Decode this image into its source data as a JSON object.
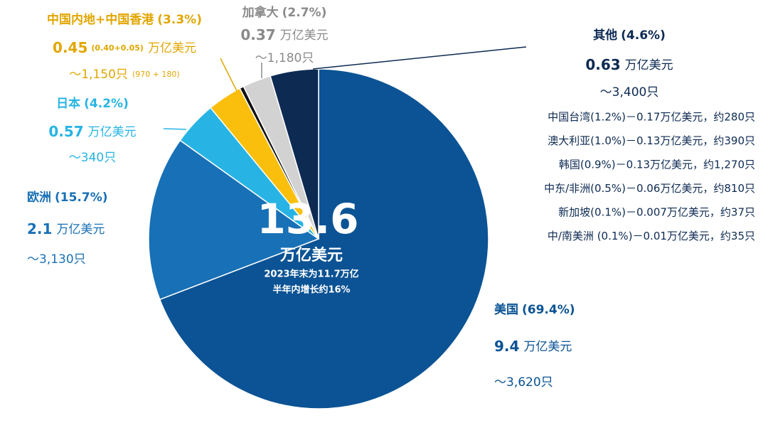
{
  "chart_data": {
    "type": "pie",
    "categories": [
      "美国",
      "欧洲",
      "日本",
      "中国内地+中国香港",
      null,
      "加拿大",
      "其他"
    ],
    "values": [
      69.4,
      15.7,
      4.2,
      3.3,
      0.4,
      2.7,
      4.6
    ],
    "value_labels": [
      "(69.4%)",
      "(15.7%)",
      "(4.2%)",
      "(3.3%)",
      null,
      "(2.7%)",
      "(4.6%)"
    ],
    "colors": [
      "#0b5394",
      "#1870b6",
      "#27b4e4",
      "#f9bf0c",
      "#111111",
      "#d2d2d2",
      "#0d2a52"
    ],
    "label_colors": [
      "#0b5394",
      "#1870b6",
      "#27b4e4",
      "#e2a600",
      null,
      "#8a8a8a",
      "#0d2a52"
    ],
    "amounts": [
      9.4,
      2.1,
      0.57,
      0.45,
      null,
      0.37,
      0.63
    ],
    "amount_breakdowns": [
      null,
      null,
      null,
      "(0.40+0.05)",
      null,
      null,
      null
    ],
    "amount_unit": "万亿美元",
    "counts": [
      "～3,620只",
      "～3,130只",
      "～340只",
      "～1,150只",
      null,
      "～1,180只",
      "～3,400只"
    ],
    "count_breakdowns": [
      null,
      null,
      null,
      "(970 + 180)",
      null,
      null,
      null
    ],
    "other_breakdown": [
      "中国台湾(1.2%)－0.17万亿美元，约280只",
      "澳大利亚(1.0%)－0.13万亿美元，约390只",
      "韩国(0.9%)－0.13万亿美元，约1,270只",
      "中东/非洲(0.5%)－0.06万亿美元，约810只",
      "新加坡(0.1%)－0.007万亿美元，约37只",
      "中/南美洲 (0.1%)－0.01万亿美元，约35只"
    ],
    "center_total": 13.6,
    "center_unit": "万亿美元",
    "center_notes": [
      "2023年末为11.7万亿",
      "半年内增长约16%"
    ]
  }
}
